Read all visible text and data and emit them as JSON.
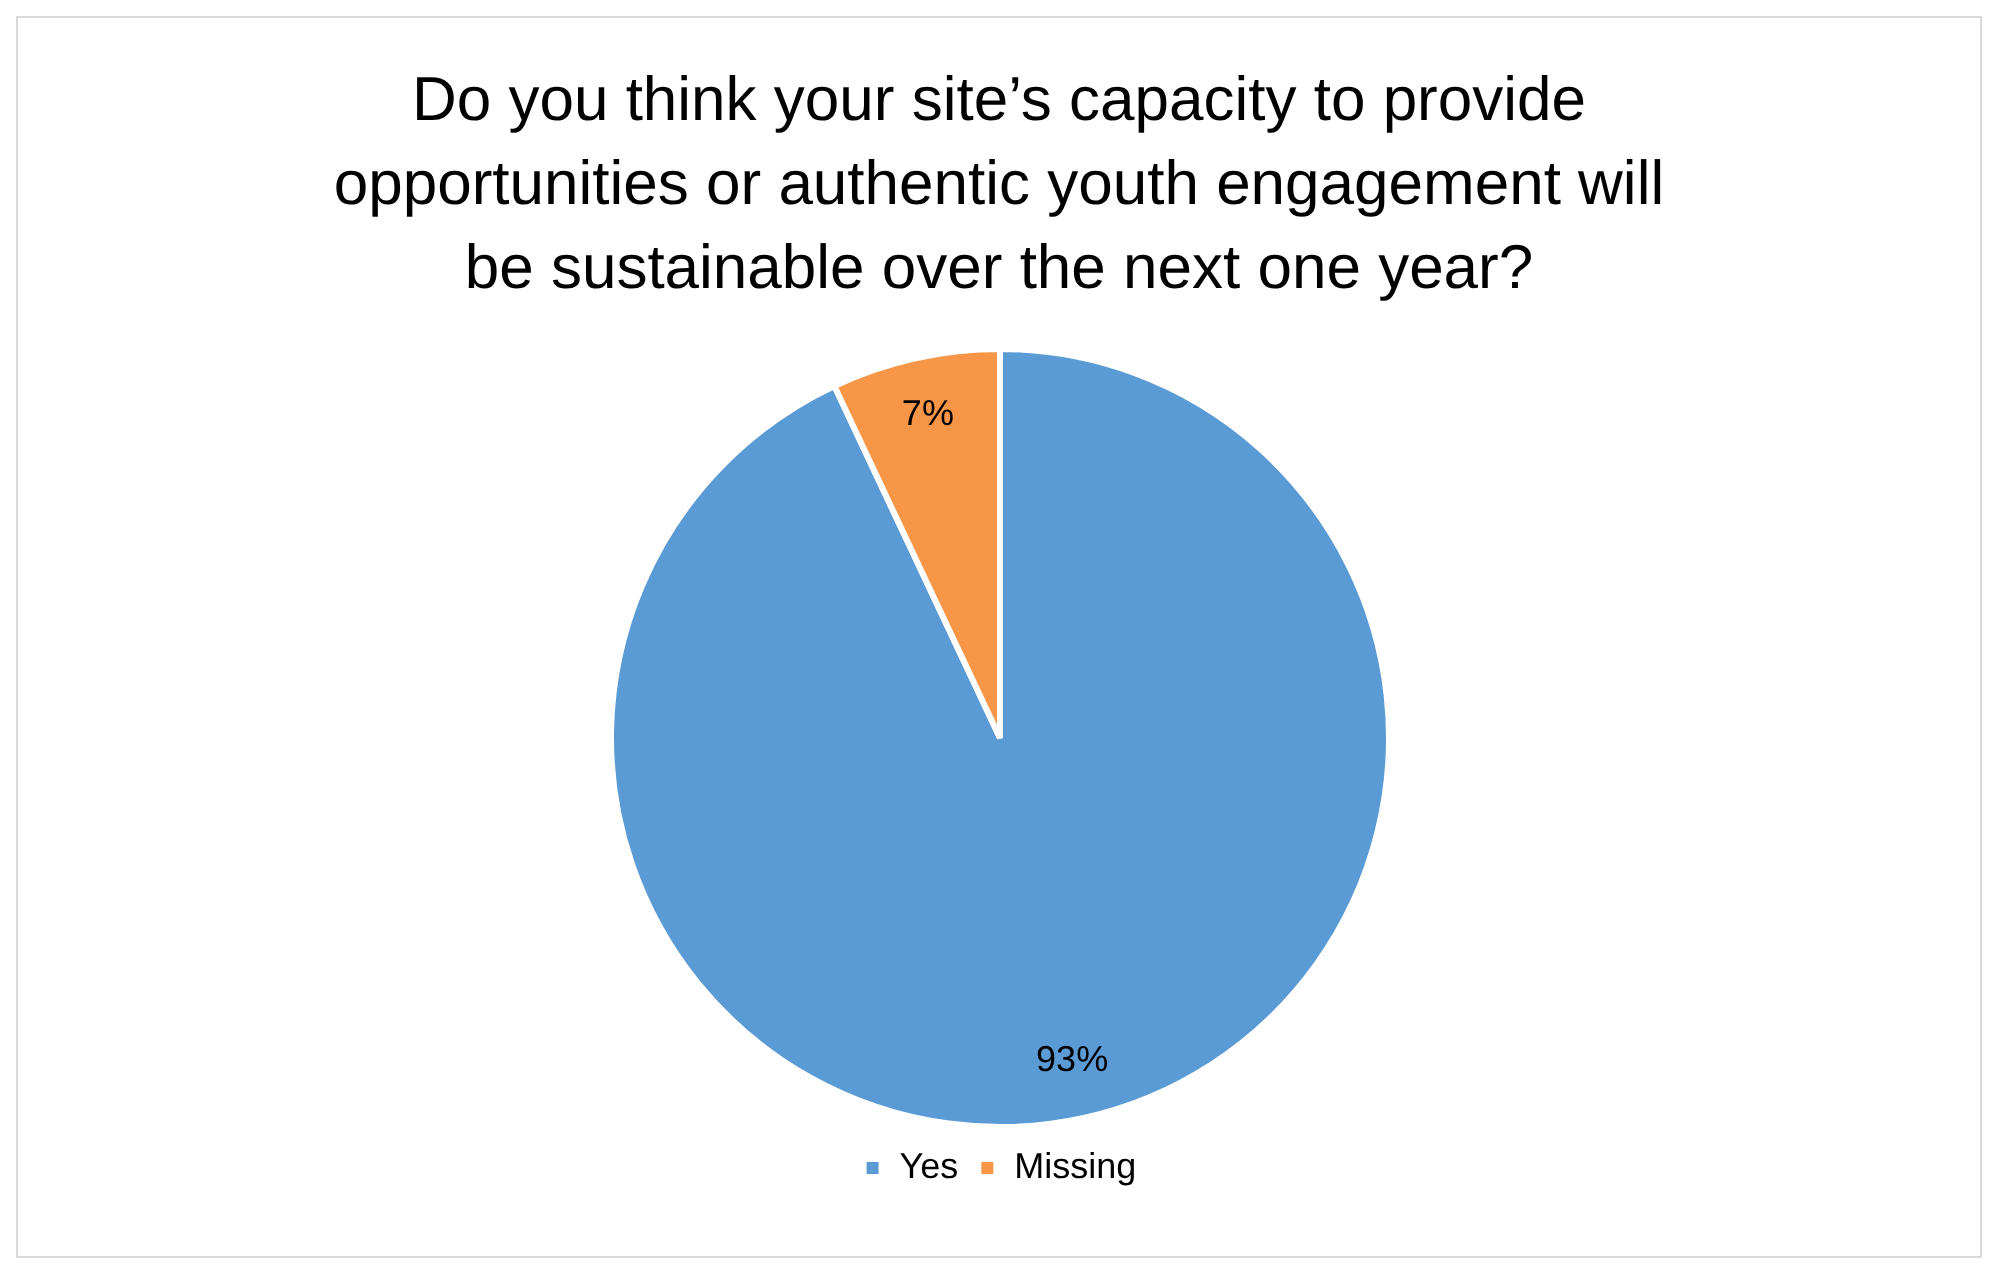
{
  "chart_data": {
    "type": "pie",
    "title": "Do you think your site’s capacity to provide opportunities or authentic youth engagement will be sustainable over the next one year?",
    "categories": [
      "Yes",
      "Missing"
    ],
    "values": [
      93,
      7
    ],
    "colors": [
      "#5b9bd5",
      "#f79646"
    ],
    "value_labels": [
      "93%",
      "7%"
    ],
    "legend": "bottom"
  }
}
